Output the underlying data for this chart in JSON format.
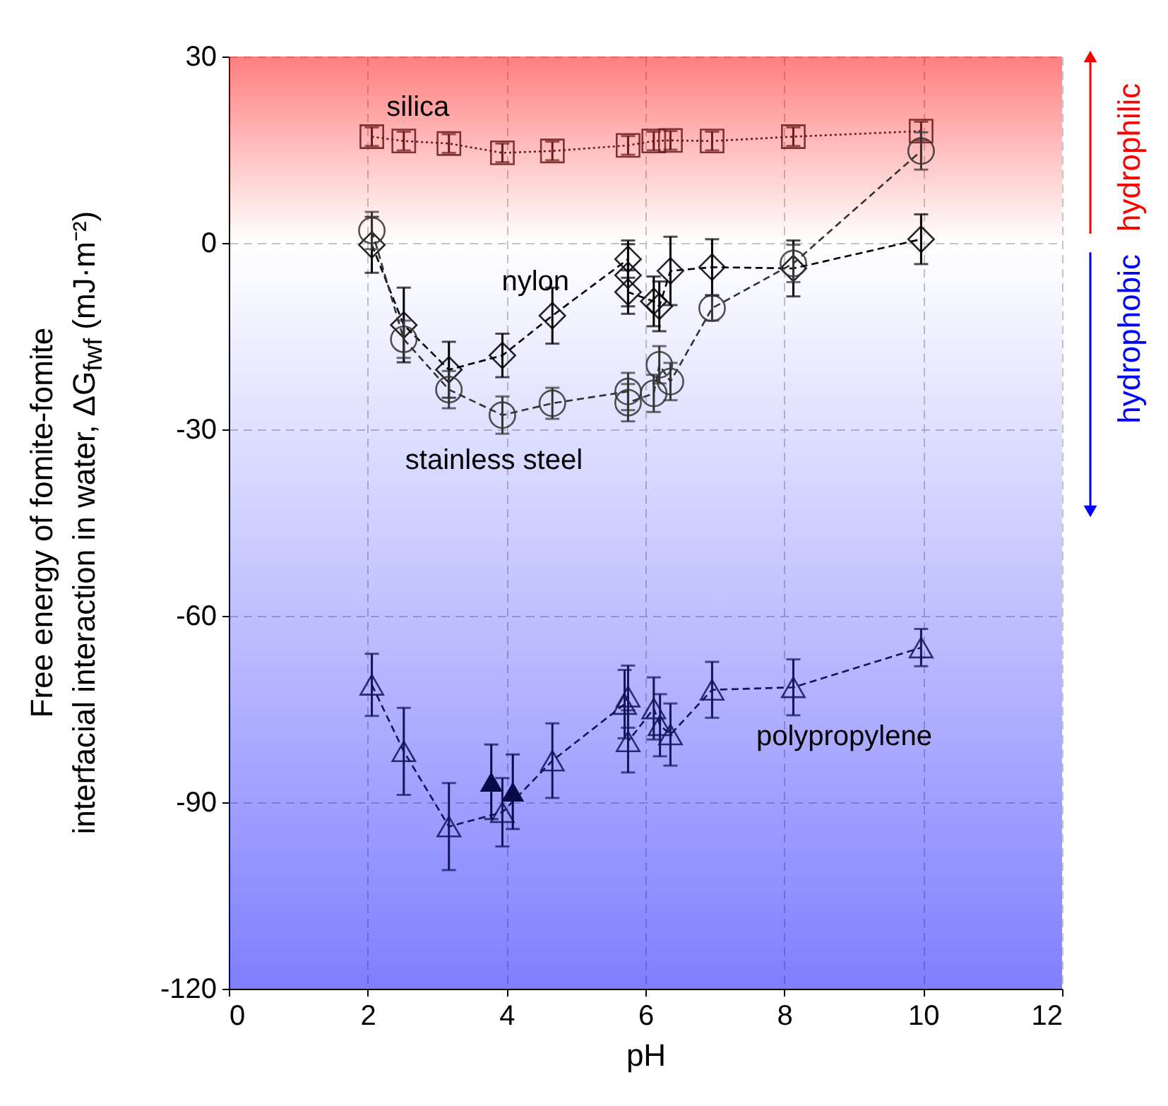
{
  "chart_data": {
    "type": "line",
    "xlabel": "pH",
    "ylabel": "Free energy of fomite-fomite\ninterfacial interaction in water,  ΔG$_{fwf}$  (mJ·m⁻²)",
    "xlim": [
      0,
      12
    ],
    "xticks": [
      0,
      2,
      4,
      6,
      8,
      10,
      12
    ],
    "ylim": [
      -120,
      30
    ],
    "yticks": [
      -120,
      -90,
      -60,
      -30,
      0,
      30
    ],
    "grid": true,
    "bands": [
      {
        "axis": "y",
        "from": 0,
        "to": 30,
        "label": "hydrophilic",
        "color": "#ff0000"
      },
      {
        "axis": "y",
        "from": 0,
        "to": -120,
        "label": "hydrophobic",
        "color": "#0000ff"
      }
    ],
    "series": [
      {
        "name": "silica",
        "color": "#6b1a1a",
        "marker": "square",
        "line_style": "dotted",
        "x": [
          2.06,
          2.52,
          3.17,
          3.94,
          4.66,
          5.75,
          6.12,
          6.36,
          6.96,
          8.13,
          9.97
        ],
        "values": [
          17.1,
          16.4,
          16.0,
          14.5,
          14.8,
          15.7,
          16.4,
          16.5,
          16.4,
          17.1,
          18.0
        ],
        "errors": [
          1.5,
          1.5,
          1.5,
          1.5,
          1.5,
          1.5,
          1.5,
          1.5,
          1.5,
          1.5,
          1.5
        ]
      },
      {
        "name": "nylon",
        "color": "#000000",
        "marker": "diamond",
        "line_style": "dashed",
        "x": [
          2.06,
          2.52,
          3.17,
          3.94,
          4.66,
          5.75,
          5.75,
          5.75,
          6.12,
          6.2,
          6.36,
          6.96,
          8.13,
          9.97
        ],
        "values": [
          -0.3,
          -13.2,
          -20.4,
          -18.1,
          -11.7,
          -2.6,
          -5.2,
          -7.9,
          -9.4,
          -10.2,
          -4.5,
          -3.9,
          -4.1,
          0.6
        ],
        "errors": [
          4.5,
          6,
          4.5,
          3.5,
          4.5,
          3,
          5,
          3.5,
          4,
          4,
          5.5,
          4.5,
          4.5,
          4
        ]
      },
      {
        "name": "stainless steel",
        "color": "#333333",
        "marker": "circle",
        "line_style": "dashed",
        "x": [
          2.06,
          2.52,
          3.17,
          3.94,
          4.66,
          5.75,
          5.75,
          6.12,
          6.2,
          6.36,
          6.96,
          8.13,
          9.97
        ],
        "values": [
          2.0,
          -15.5,
          -23.6,
          -27.7,
          -25.8,
          -23.9,
          -25.7,
          -24.2,
          -19.6,
          -22.3,
          -10.5,
          -3.3,
          14.8
        ],
        "errors": [
          3,
          3,
          3,
          3,
          2.5,
          3,
          3,
          3,
          3,
          3,
          2,
          3,
          3
        ]
      },
      {
        "name": "polypropylene",
        "color": "#14145a",
        "marker": "triangle",
        "line_style": "dashed",
        "x": [
          2.06,
          2.52,
          3.17,
          3.94,
          4.66,
          5.7,
          5.75,
          5.75,
          6.12,
          6.21,
          6.36,
          6.96,
          8.13,
          9.97
        ],
        "values": [
          -71.1,
          -81.8,
          -93.9,
          -91.6,
          -83.3,
          -74.2,
          -73.0,
          -80.2,
          -74.9,
          -77.6,
          -79.1,
          -71.9,
          -71.5,
          -65.1
        ],
        "errors": [
          5,
          7,
          7,
          5.5,
          6,
          5.5,
          5,
          5,
          5,
          5,
          5,
          4.5,
          4.5,
          3
        ]
      },
      {
        "type": "scatter",
        "color": "#0a0a4a",
        "marker": "triangle",
        "x": [
          3.78,
          4.09
        ],
        "values": [
          -86.7,
          -88.3
        ],
        "errors": [
          6,
          6
        ]
      }
    ]
  }
}
